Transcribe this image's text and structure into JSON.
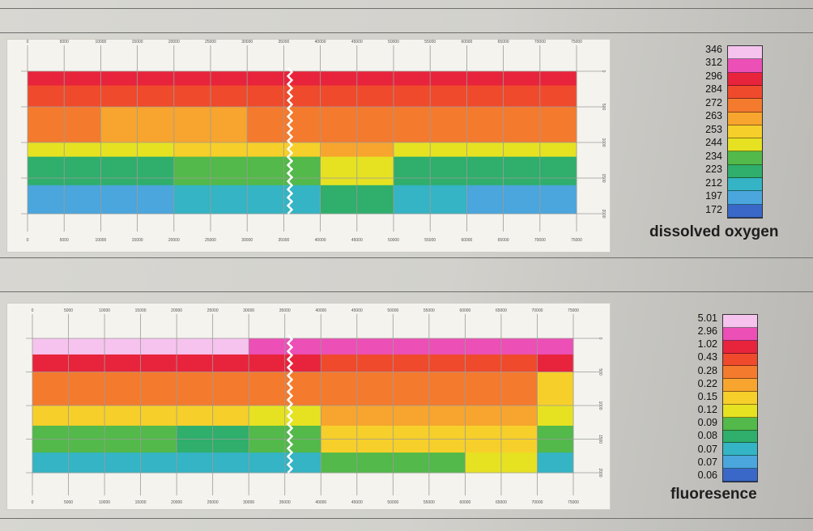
{
  "chart_data": [
    {
      "type": "heatmap",
      "title": "",
      "xlabel": "",
      "ylabel": "",
      "colorbar_label": "dissolved oxygen",
      "colorbar_ticks": [
        "346",
        "312",
        "296",
        "284",
        "272",
        "263",
        "253",
        "244",
        "234",
        "223",
        "212",
        "197",
        "172"
      ],
      "colorbar_colors": [
        "#f6c3ee",
        "#ec4fb6",
        "#e8243c",
        "#ef4a2c",
        "#f47a2e",
        "#f7a52e",
        "#f6cf2a",
        "#e6e222",
        "#52b94a",
        "#2fae6c",
        "#34b4c4",
        "#4aa6dc",
        "#3a68c8"
      ],
      "x_ticks_top": [
        "0",
        "5000",
        "10000",
        "15000",
        "20000",
        "25000",
        "30000",
        "35000",
        "40000",
        "45000",
        "50000",
        "55000",
        "60000",
        "65000",
        "70000",
        "75000"
      ],
      "x_ticks_bottom": [
        "0",
        "5000",
        "10000",
        "15000",
        "20000",
        "25000",
        "30000",
        "35000",
        "40000",
        "45000",
        "50000",
        "55000",
        "60000",
        "65000",
        "70000",
        "75000"
      ],
      "y_ticks_right": [
        "0",
        "500",
        "1000",
        "1500",
        "2000"
      ],
      "xlim": [
        0,
        75000
      ],
      "ylim": [
        2000,
        0
      ],
      "grid": true,
      "profile": [
        {
          "x": 0,
          "bands": [
            296,
            284,
            272,
            244,
            223,
            197
          ]
        },
        {
          "x": 10000,
          "bands": [
            296,
            284,
            263,
            244,
            223,
            197
          ]
        },
        {
          "x": 20000,
          "bands": [
            296,
            284,
            263,
            253,
            234,
            212
          ]
        },
        {
          "x": 30000,
          "bands": [
            296,
            284,
            272,
            253,
            234,
            212
          ]
        },
        {
          "x": 40000,
          "bands": [
            296,
            284,
            272,
            263,
            244,
            223
          ]
        },
        {
          "x": 50000,
          "bands": [
            296,
            284,
            272,
            244,
            223,
            212
          ]
        },
        {
          "x": 60000,
          "bands": [
            296,
            284,
            272,
            244,
            223,
            197
          ]
        },
        {
          "x": 70000,
          "bands": [
            296,
            284,
            272,
            244,
            223,
            197
          ]
        }
      ],
      "band_depth_fractions": [
        0.1,
        0.25,
        0.5,
        0.6,
        0.8,
        1.0
      ]
    },
    {
      "type": "heatmap",
      "title": "",
      "xlabel": "",
      "ylabel": "",
      "colorbar_label": "fluoresence",
      "colorbar_ticks": [
        "5.01",
        "2.96",
        "1.02",
        "0.43",
        "0.28",
        "0.22",
        "0.15",
        "0.12",
        "0.09",
        "0.08",
        "0.07",
        "0.07",
        "0.06"
      ],
      "colorbar_colors": [
        "#f6c3ee",
        "#ec4fb6",
        "#e8243c",
        "#ef4a2c",
        "#f47a2e",
        "#f7a52e",
        "#f6cf2a",
        "#e6e222",
        "#52b94a",
        "#2fae6c",
        "#34b4c4",
        "#4aa6dc",
        "#3a68c8"
      ],
      "x_ticks_top": [
        "0",
        "5000",
        "10000",
        "15000",
        "20000",
        "25000",
        "30000",
        "35000",
        "40000",
        "45000",
        "50000",
        "55000",
        "60000",
        "65000",
        "70000",
        "75000"
      ],
      "x_ticks_bottom": [
        "0",
        "5000",
        "10000",
        "15000",
        "20000",
        "25000",
        "30000",
        "35000",
        "40000",
        "45000",
        "50000",
        "55000",
        "60000",
        "65000",
        "70000",
        "75000"
      ],
      "y_ticks_right": [
        "0",
        "500",
        "1000",
        "1500",
        "2000"
      ],
      "xlim": [
        0,
        75000
      ],
      "ylim": [
        2000,
        0
      ],
      "grid": true,
      "profile": [
        {
          "x": 0,
          "bands": [
            5.01,
            1.02,
            0.28,
            0.15,
            0.09,
            0.07
          ]
        },
        {
          "x": 10000,
          "bands": [
            5.01,
            1.02,
            0.28,
            0.15,
            0.09,
            0.07
          ]
        },
        {
          "x": 20000,
          "bands": [
            5.01,
            1.02,
            0.28,
            0.15,
            0.08,
            0.07
          ]
        },
        {
          "x": 30000,
          "bands": [
            2.96,
            1.02,
            0.28,
            0.12,
            0.09,
            0.07
          ]
        },
        {
          "x": 40000,
          "bands": [
            2.96,
            0.43,
            0.28,
            0.22,
            0.15,
            0.09
          ]
        },
        {
          "x": 50000,
          "bands": [
            2.96,
            0.43,
            0.28,
            0.22,
            0.15,
            0.09
          ]
        },
        {
          "x": 60000,
          "bands": [
            2.96,
            0.43,
            0.28,
            0.22,
            0.15,
            0.12
          ]
        },
        {
          "x": 70000,
          "bands": [
            2.96,
            1.02,
            0.15,
            0.12,
            0.09,
            0.07
          ]
        }
      ],
      "band_depth_fractions": [
        0.12,
        0.25,
        0.5,
        0.65,
        0.85,
        1.0
      ]
    }
  ]
}
